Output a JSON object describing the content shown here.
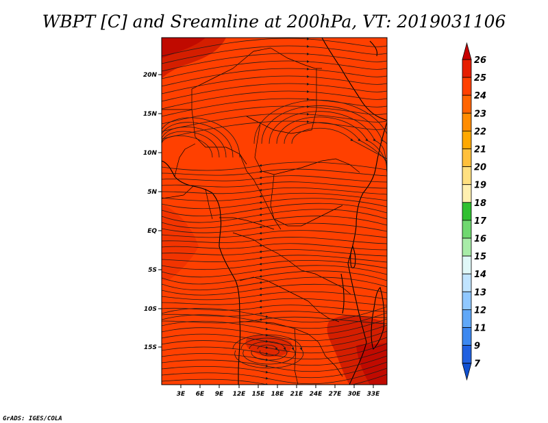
{
  "title": "WBPT [C] and Sreamline at 200hPa, VT: 2019031106",
  "credit": "GrADS: IGES/COLA",
  "map": {
    "lat_range": [
      -20,
      24.5
    ],
    "lon_range": [
      0.5,
      35.5
    ],
    "lat_ticks": [
      "20N",
      "15N",
      "10N",
      "5N",
      "EQ",
      "5S",
      "10S",
      "15S"
    ],
    "lon_ticks": [
      "3E",
      "6E",
      "9E",
      "12E",
      "15E",
      "18E",
      "21E",
      "24E",
      "27E",
      "30E",
      "33E"
    ],
    "background_color": "#ff4000",
    "streamline_color": "#1a1a1a"
  },
  "colorbar": {
    "labels": [
      "26",
      "25",
      "24",
      "23",
      "22",
      "21",
      "20",
      "19",
      "18",
      "17",
      "16",
      "15",
      "14",
      "13",
      "12",
      "11",
      "9",
      "7"
    ],
    "colors": [
      "#c80000",
      "#e61e00",
      "#ff4000",
      "#ff6400",
      "#ff8c00",
      "#ffa800",
      "#ffc03c",
      "#ffe080",
      "#fff0b0",
      "#30c030",
      "#70d870",
      "#a8eca8",
      "#e0f8f8",
      "#c0e4ff",
      "#90c8ff",
      "#60a8f8",
      "#3c88f0",
      "#2060e0",
      "#1050d0"
    ]
  }
}
